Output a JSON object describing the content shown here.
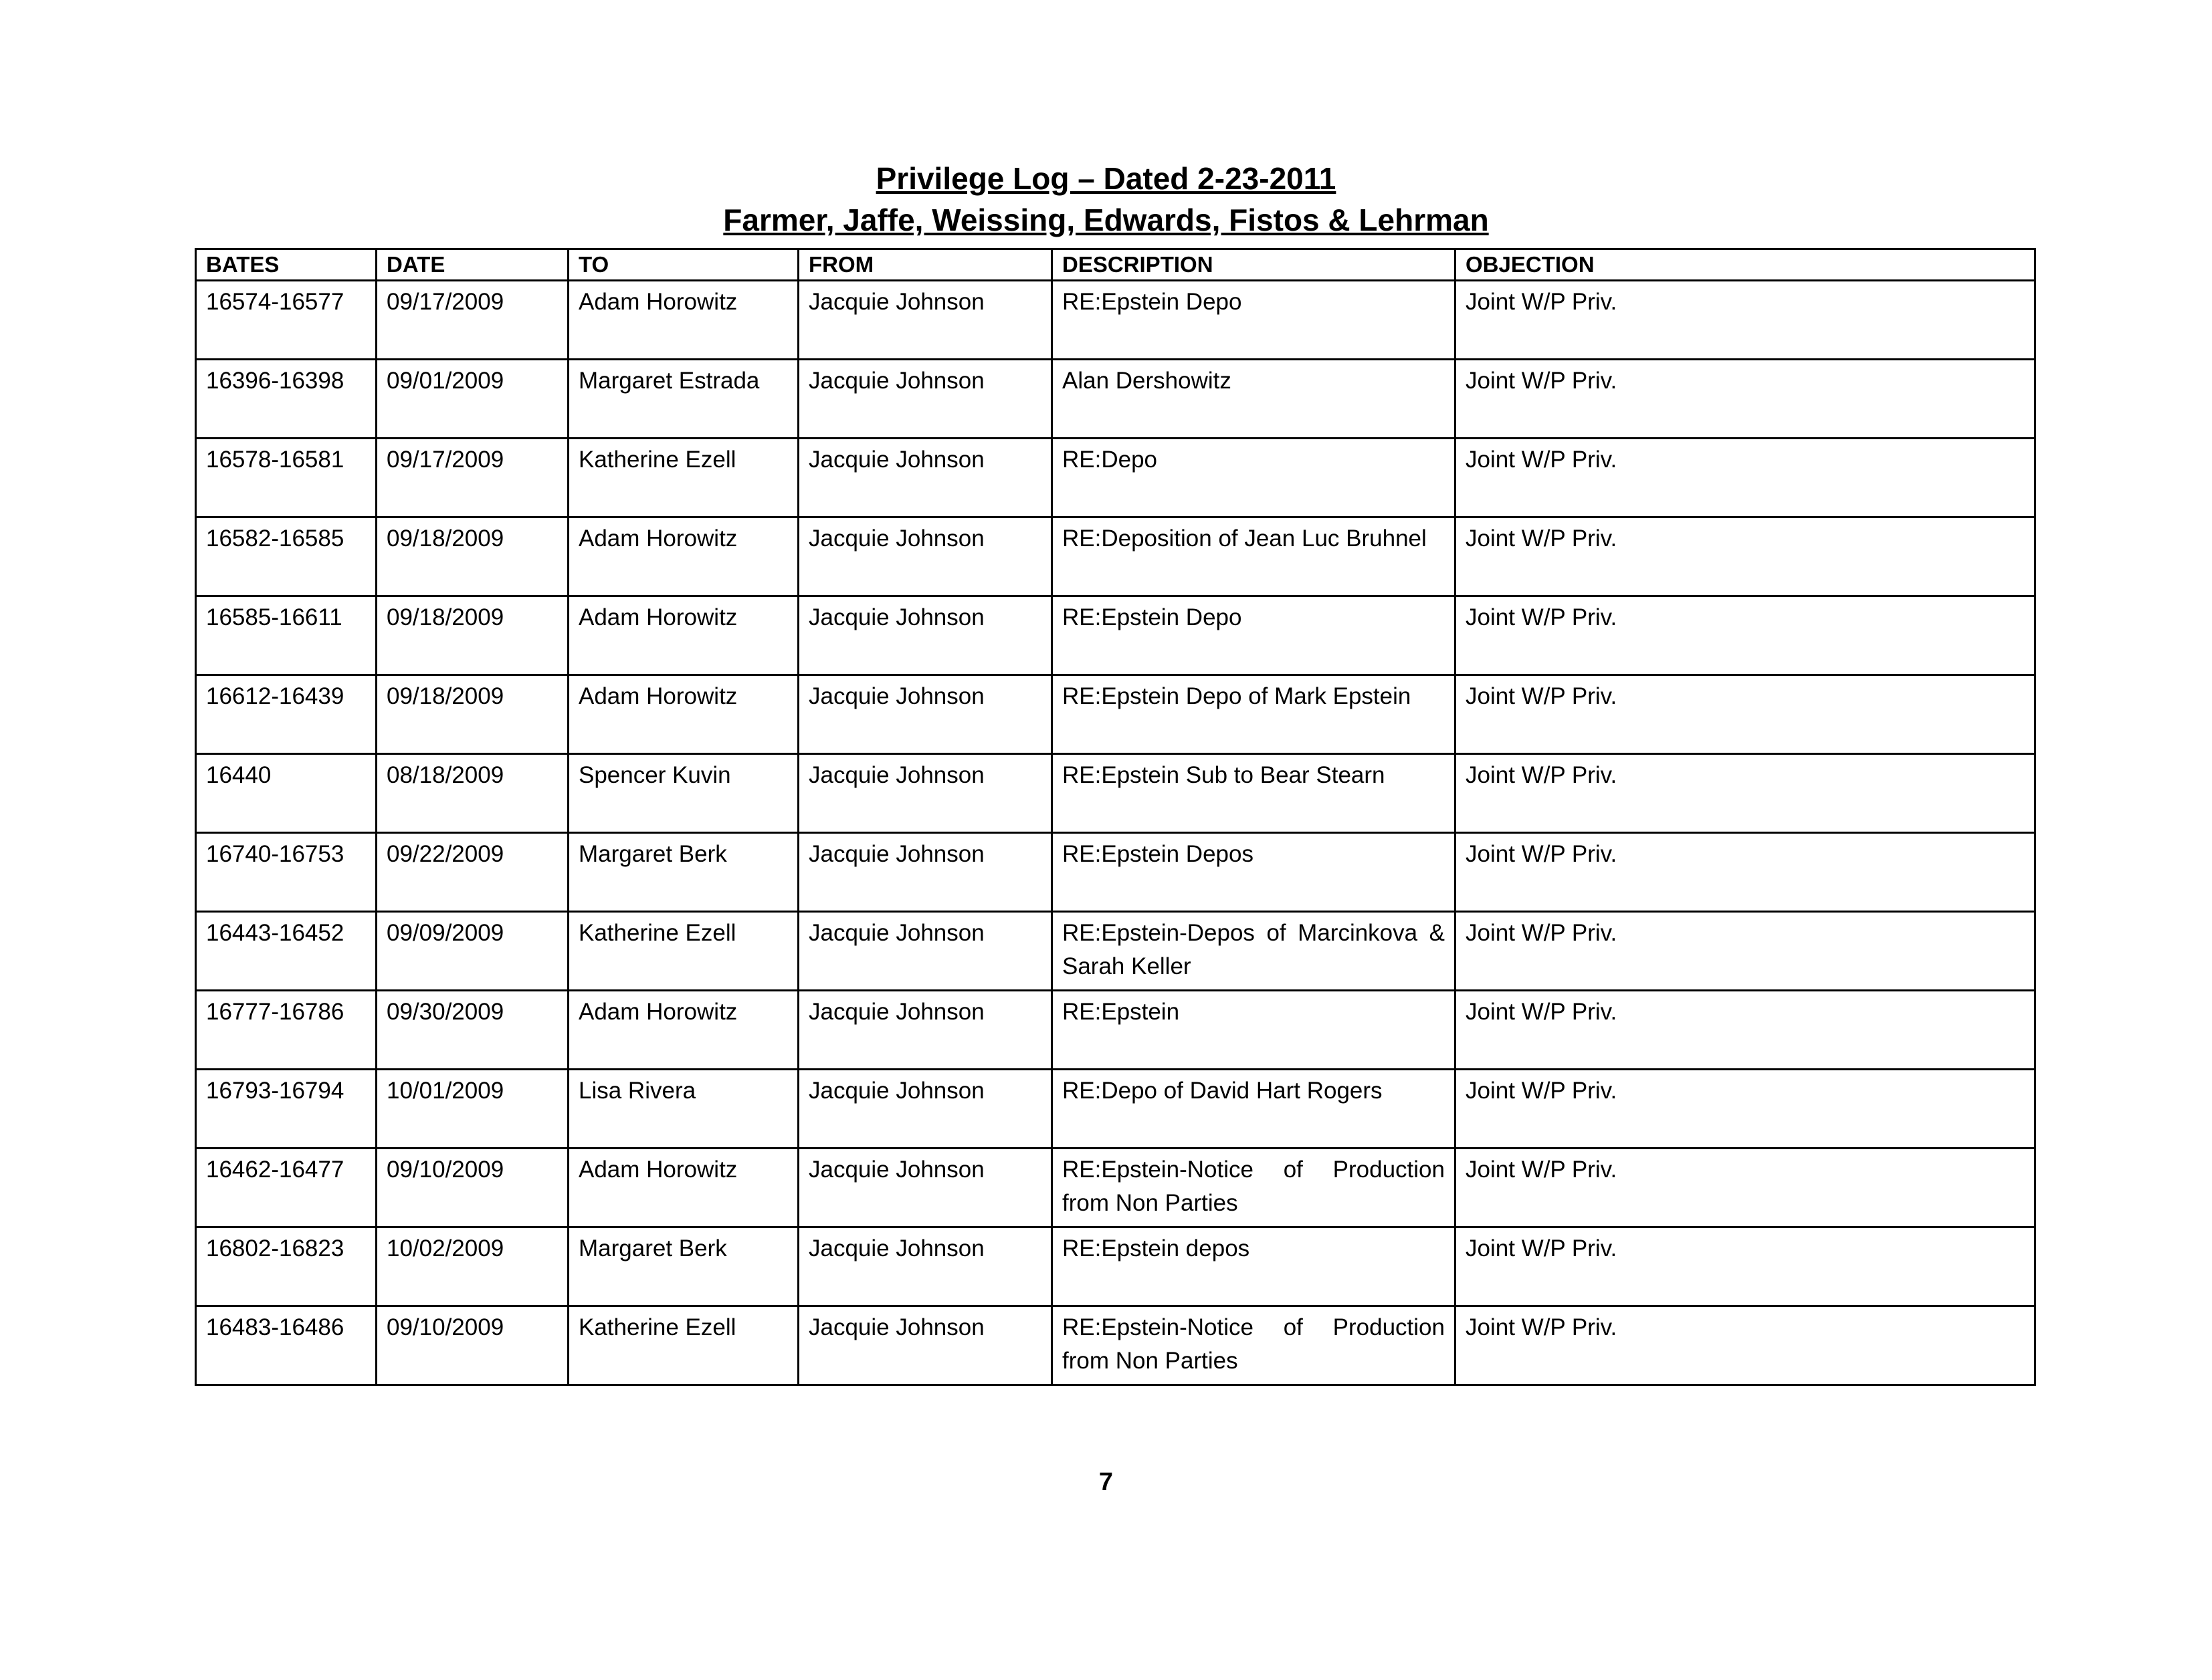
{
  "header": {
    "title": "Privilege Log – Dated 2-23-2011",
    "subtitle": "Farmer, Jaffe, Weissing, Edwards, Fistos & Lehrman"
  },
  "table": {
    "columns": [
      "BATES",
      "DATE",
      "TO",
      "FROM",
      "DESCRIPTION",
      "OBJECTION"
    ],
    "rows": [
      [
        "16574-16577",
        "09/17/2009",
        "Adam Horowitz",
        "Jacquie Johnson",
        "RE:Epstein Depo",
        "Joint W/P Priv."
      ],
      [
        "16396-16398",
        "09/01/2009",
        "Margaret Estrada",
        "Jacquie Johnson",
        "Alan Dershowitz",
        "Joint W/P Priv."
      ],
      [
        "16578-16581",
        "09/17/2009",
        "Katherine Ezell",
        "Jacquie Johnson",
        "RE:Depo",
        "Joint W/P Priv."
      ],
      [
        "16582-16585",
        "09/18/2009",
        "Adam Horowitz",
        "Jacquie Johnson",
        "RE:Deposition of Jean Luc Bruhnel",
        "Joint W/P Priv."
      ],
      [
        "16585-16611",
        "09/18/2009",
        "Adam Horowitz",
        "Jacquie Johnson",
        "RE:Epstein Depo",
        "Joint W/P Priv."
      ],
      [
        "16612-16439",
        "09/18/2009",
        "Adam Horowitz",
        "Jacquie Johnson",
        "RE:Epstein Depo of Mark Epstein",
        "Joint W/P Priv."
      ],
      [
        "16440",
        "08/18/2009",
        "Spencer Kuvin",
        "Jacquie Johnson",
        "RE:Epstein Sub to Bear Stearn",
        "Joint W/P Priv."
      ],
      [
        "16740-16753",
        "09/22/2009",
        "Margaret Berk",
        "Jacquie Johnson",
        "RE:Epstein Depos",
        "Joint W/P Priv."
      ],
      [
        "16443-16452",
        "09/09/2009",
        "Katherine Ezell",
        "Jacquie Johnson",
        "RE:Epstein-Depos of Marcinkova & Sarah Keller",
        "Joint W/P Priv."
      ],
      [
        "16777-16786",
        "09/30/2009",
        "Adam Horowitz",
        "Jacquie Johnson",
        "RE:Epstein",
        "Joint W/P Priv."
      ],
      [
        "16793-16794",
        "10/01/2009",
        "Lisa Rivera",
        "Jacquie Johnson",
        "RE:Depo of David Hart Rogers",
        "Joint W/P Priv."
      ],
      [
        "16462-16477",
        "09/10/2009",
        "Adam Horowitz",
        "Jacquie Johnson",
        "RE:Epstein-Notice of Production from Non Parties",
        "Joint W/P Priv."
      ],
      [
        "16802-16823",
        "10/02/2009",
        "Margaret Berk",
        "Jacquie Johnson",
        "RE:Epstein depos",
        "Joint W/P Priv."
      ],
      [
        "16483-16486",
        "09/10/2009",
        "Katherine Ezell",
        "Jacquie Johnson",
        "RE:Epstein-Notice of Production from Non Parties",
        "Joint W/P Priv."
      ]
    ]
  },
  "footer": {
    "page_number": "7"
  }
}
